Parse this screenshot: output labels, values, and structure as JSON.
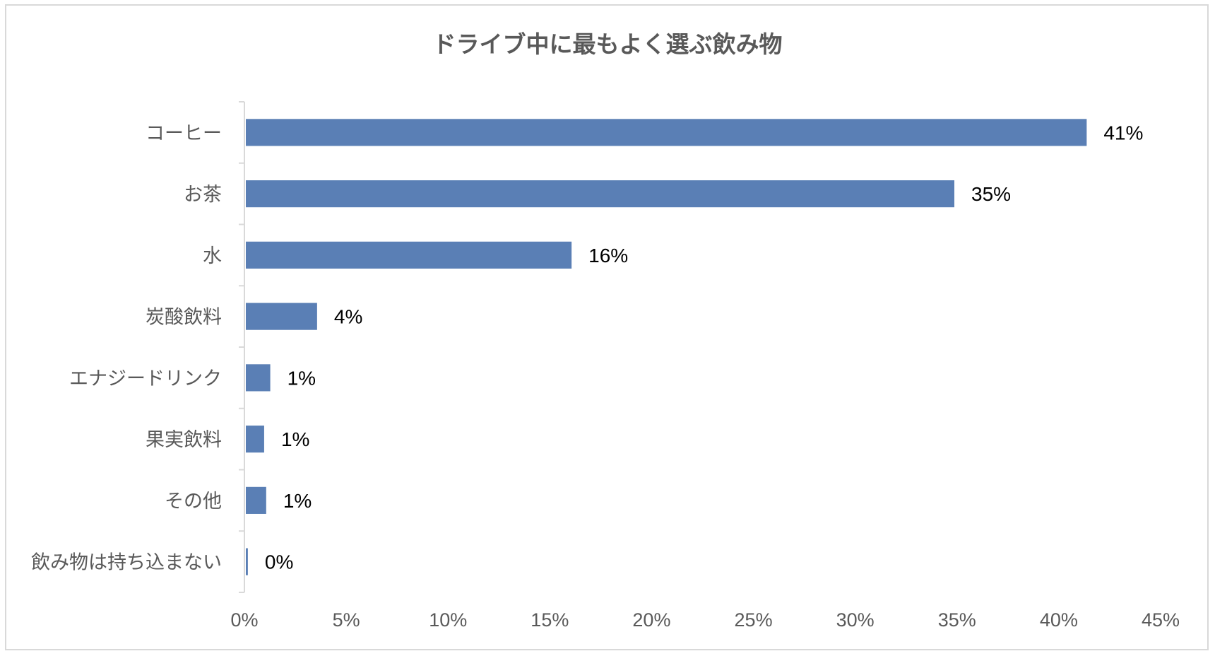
{
  "chart_data": {
    "type": "bar",
    "orientation": "horizontal",
    "title": "ドライブ中に最もよく選ぶ飲み物",
    "categories": [
      "コーヒー",
      "お茶",
      "水",
      "炭酸飲料",
      "エナジードリンク",
      "果実飲料",
      "その他",
      "飲み物は持ち込まない"
    ],
    "values": [
      41.3,
      34.8,
      16.0,
      3.5,
      1.2,
      0.9,
      1.0,
      0.1
    ],
    "data_labels": [
      "41%",
      "35%",
      "16%",
      "4%",
      "1%",
      "1%",
      "1%",
      "0%"
    ],
    "xlim": [
      0,
      45
    ],
    "x_ticks": [
      0,
      5,
      10,
      15,
      20,
      25,
      30,
      35,
      40,
      45
    ],
    "x_tick_labels": [
      "0%",
      "5%",
      "10%",
      "15%",
      "20%",
      "25%",
      "30%",
      "35%",
      "40%",
      "45%"
    ],
    "bar_color": "#5a7fb5",
    "grid": false,
    "legend": "none"
  }
}
